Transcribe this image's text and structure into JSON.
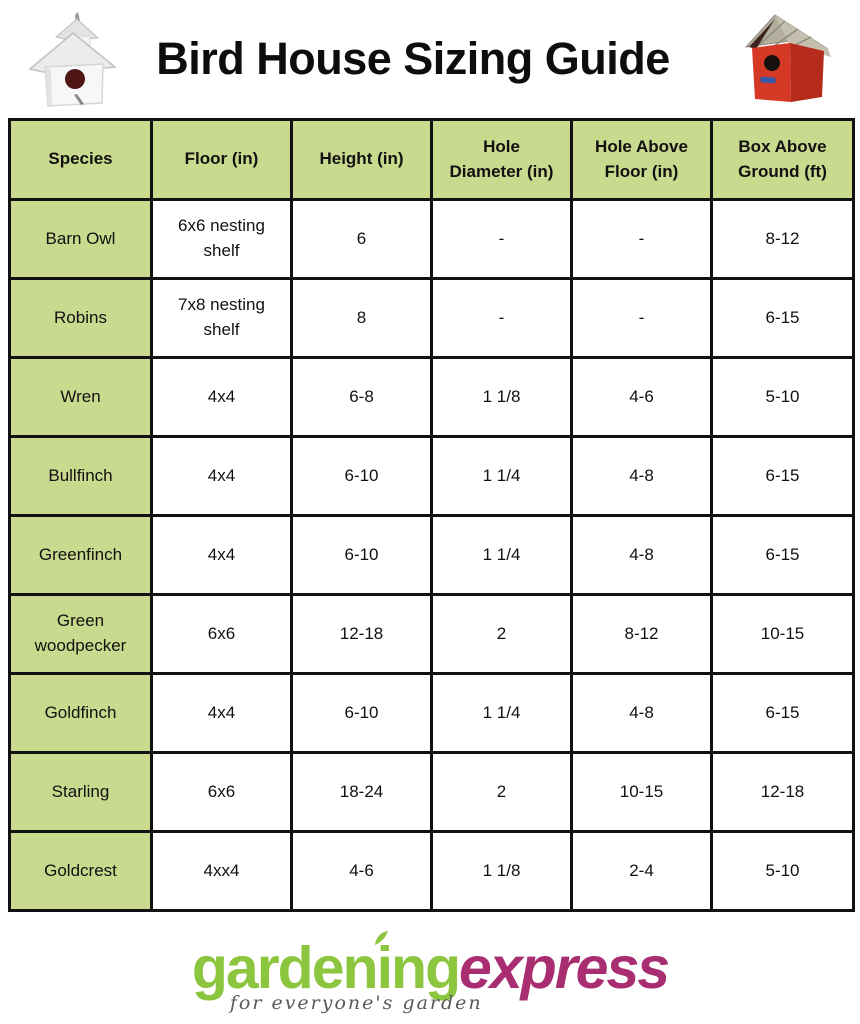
{
  "title": "Bird House Sizing Guide",
  "icons": {
    "left": "white-birdhouse-icon",
    "right": "red-birdhouse-icon"
  },
  "table": {
    "headers": [
      [
        "Species"
      ],
      [
        "Floor (in)"
      ],
      [
        "Height (in)"
      ],
      [
        "Hole",
        "Diameter (in)"
      ],
      [
        "Hole Above",
        "Floor (in)"
      ],
      [
        "Box Above",
        "Ground (ft)"
      ]
    ],
    "rows": [
      [
        "Barn Owl",
        "6x6 nesting shelf",
        "6",
        "-",
        "-",
        "8-12"
      ],
      [
        "Robins",
        "7x8 nesting shelf",
        "8",
        "-",
        "-",
        "6-15"
      ],
      [
        "Wren",
        "4x4",
        "6-8",
        "1 1/8",
        "4-6",
        "5-10"
      ],
      [
        "Bullfinch",
        "4x4",
        "6-10",
        "1 1/4",
        "4-8",
        "6-15"
      ],
      [
        "Greenfinch",
        "4x4",
        "6-10",
        "1 1/4",
        "4-8",
        "6-15"
      ],
      [
        "Green woodpecker",
        "6x6",
        "12-18",
        "2",
        "8-12",
        "10-15"
      ],
      [
        "Goldfinch",
        "4x4",
        "6-10",
        "1 1/4",
        "4-8",
        "6-15"
      ],
      [
        "Starling",
        "6x6",
        "18-24",
        "2",
        "10-15",
        "12-18"
      ],
      [
        "Goldcrest",
        "4xx4",
        "4-6",
        "1 1/8",
        "2-4",
        "5-10"
      ]
    ]
  },
  "logo": {
    "part1": "gardening",
    "part2": "express",
    "tagline": "for everyone's garden"
  },
  "colors": {
    "cell_green": "#c9d98e",
    "table_border": "#111111",
    "logo_green": "#8cc63e",
    "logo_pink": "#a92e71",
    "tagline_gray": "#58595b",
    "red_house": "#d63826",
    "roof_gray": "#b3ae9e"
  }
}
